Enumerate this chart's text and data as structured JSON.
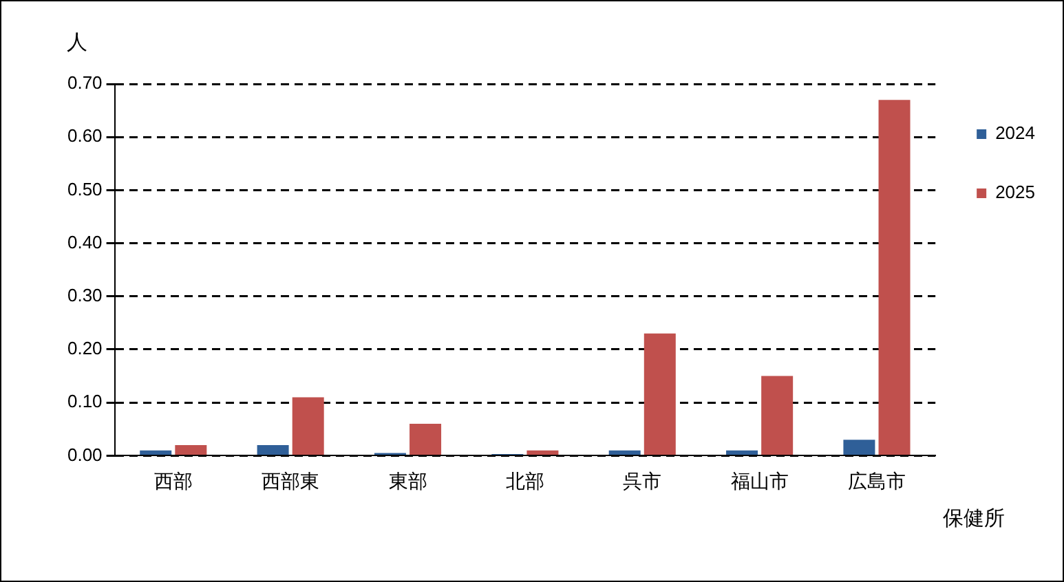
{
  "chart_data": {
    "type": "bar",
    "xlabel": "保健所",
    "ylabel": "人",
    "categories": [
      "西部",
      "西部東",
      "東部",
      "北部",
      "呉市",
      "福山市",
      "広島市"
    ],
    "series": [
      {
        "name": "2024",
        "color": "#2f5f98",
        "values": [
          0.01,
          0.02,
          0.005,
          0.003,
          0.01,
          0.01,
          0.03
        ]
      },
      {
        "name": "2025",
        "color": "#c0504d",
        "values": [
          0.02,
          0.11,
          0.06,
          0.01,
          0.23,
          0.15,
          0.67
        ]
      }
    ],
    "ylim": [
      0,
      0.7
    ],
    "yticks": [
      {
        "value": 0,
        "label": "0.00"
      },
      {
        "value": 0.1,
        "label": "0.10"
      },
      {
        "value": 0.2,
        "label": "0.20"
      },
      {
        "value": 0.3,
        "label": "0.30"
      },
      {
        "value": 0.4,
        "label": "0.40"
      },
      {
        "value": 0.5,
        "label": "0.50"
      },
      {
        "value": 0.6,
        "label": "0.60"
      },
      {
        "value": 0.7,
        "label": "0.70"
      }
    ],
    "grid": "y",
    "legend": "top right"
  }
}
